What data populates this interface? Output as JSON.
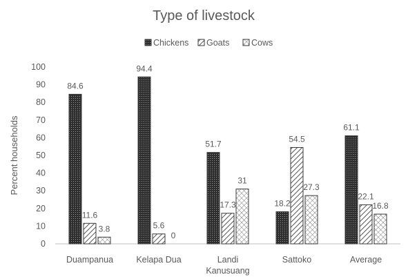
{
  "chart_data": {
    "type": "bar",
    "title": "Type of livestock",
    "xlabel": "",
    "ylabel": "Percent  households",
    "ylim": [
      0,
      100
    ],
    "yticks": [
      0,
      10,
      20,
      30,
      40,
      50,
      60,
      70,
      80,
      90,
      100
    ],
    "grid": false,
    "legend_position": "top",
    "categories": [
      [
        "Duampanua"
      ],
      [
        "Kelapa Dua"
      ],
      [
        "Landi",
        "Kanusuang"
      ],
      [
        "Sattoko"
      ],
      [
        "Average"
      ]
    ],
    "series": [
      {
        "name": "Chickens",
        "values": [
          84.6,
          94.4,
          51.7,
          18.2,
          61.1
        ],
        "pattern": "dense-dots"
      },
      {
        "name": "Goats",
        "values": [
          11.6,
          5.6,
          17.3,
          54.5,
          22.1
        ],
        "pattern": "diagonal-hatch"
      },
      {
        "name": "Cows",
        "values": [
          3.8,
          0,
          31,
          27.3,
          16.8
        ],
        "pattern": "cross-hatch"
      }
    ],
    "data_labels": [
      [
        "84.6",
        "94.4",
        "51.7",
        "18.2",
        "61.1"
      ],
      [
        "11.6",
        "5.6",
        "17.3",
        "54.5",
        "22.1"
      ],
      [
        "3.8",
        "0",
        "31",
        "27.3",
        "16.8"
      ]
    ],
    "colors": {
      "text": "#595959",
      "bar_outline": "#3a3a3a",
      "axis": "#bfbfbf"
    }
  }
}
